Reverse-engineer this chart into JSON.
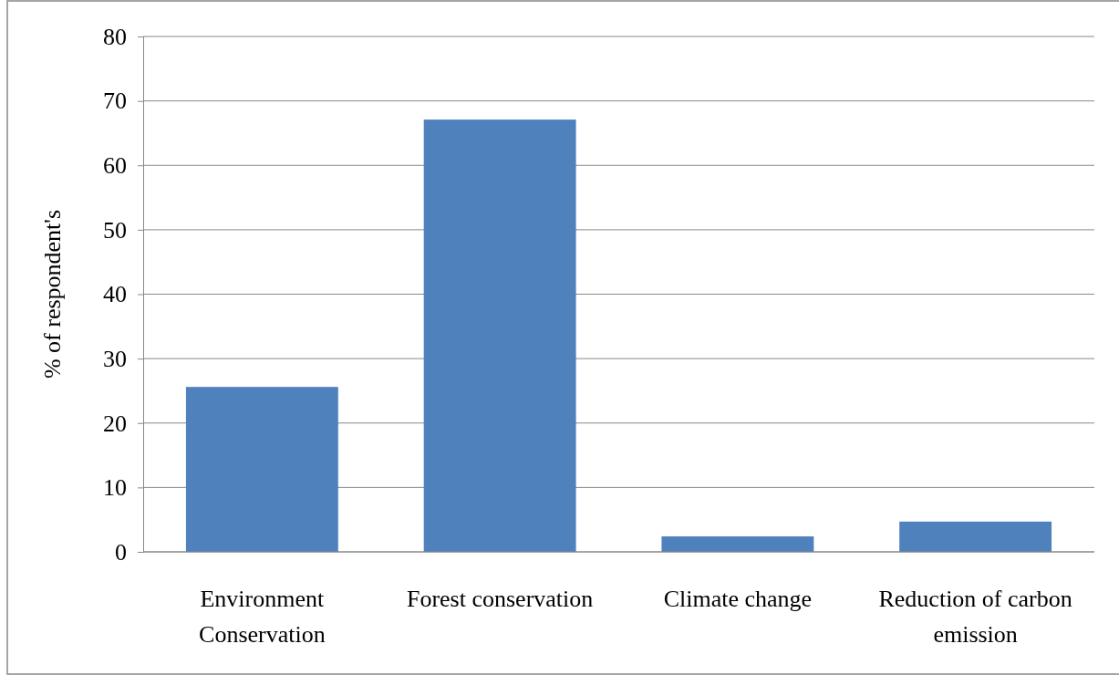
{
  "chart_data": {
    "type": "bar",
    "ylabel": "% of respondent's",
    "categories": [
      "Environment Conservation",
      "Forest conservation",
      "Climate change",
      "Reduction of carbon emission"
    ],
    "values": [
      25.6,
      67.1,
      2.4,
      4.7
    ],
    "color": "#4f81bd",
    "ylim": [
      0,
      80
    ],
    "yticks": [
      0,
      10,
      20,
      30,
      40,
      50,
      60,
      70,
      80
    ],
    "grid": "y"
  }
}
